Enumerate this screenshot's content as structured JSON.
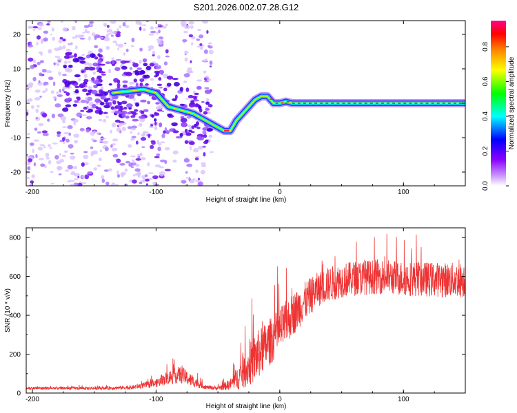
{
  "title": "S201.2026.002.07.28.G12",
  "chart_data": [
    {
      "type": "heatmap",
      "xlabel": "Height of straight line (km)",
      "ylabel": "Frequency (Hz)",
      "xlim": [
        -205,
        150
      ],
      "ylim": [
        -24,
        24
      ],
      "xticks": [
        -200,
        -100,
        0,
        100
      ],
      "yticks": [
        -20,
        -10,
        0,
        10,
        20
      ],
      "colorbar": {
        "label": "Normalized spectral amplitude",
        "range": [
          0,
          0.95
        ],
        "ticks": [
          0,
          0.2,
          0.4,
          0.6,
          0.8
        ],
        "colors": [
          "#ffffff",
          "#cc99ff",
          "#8800ff",
          "#0000ff",
          "#00ffff",
          "#00ff00",
          "#ffff00",
          "#ff8800",
          "#ff0000",
          "#ff0088"
        ]
      },
      "ridge": {
        "x": [
          -135,
          -110,
          -100,
          -90,
          -80,
          -70,
          -60,
          -55,
          -50,
          -45,
          -40,
          -35,
          -30,
          -25,
          -20,
          -15,
          -10,
          -5,
          0,
          5,
          10,
          20,
          50,
          100,
          150
        ],
        "y": [
          3,
          4,
          3,
          -1,
          -2,
          -3,
          -5,
          -6,
          -7,
          -8,
          -8,
          -5,
          -3,
          -1,
          1,
          2,
          2,
          0,
          0,
          0.5,
          0,
          0,
          0,
          0,
          0
        ]
      }
    },
    {
      "type": "line",
      "xlabel": "Height of straight line (km)",
      "ylabel": "SNR (10 * v/v)",
      "xlim": [
        -205,
        150
      ],
      "ylim": [
        0,
        850
      ],
      "xticks": [
        -200,
        -100,
        0,
        100
      ],
      "yticks": [
        0,
        200,
        400,
        600,
        800
      ],
      "series": [
        {
          "name": "SNR",
          "color": "#ee3333",
          "trend_x": [
            -205,
            -150,
            -120,
            -100,
            -90,
            -80,
            -70,
            -60,
            -50,
            -40,
            -30,
            -20,
            -10,
            0,
            10,
            20,
            30,
            40,
            50,
            60,
            80,
            100,
            120,
            150
          ],
          "trend_y": [
            25,
            25,
            28,
            50,
            80,
            95,
            60,
            30,
            25,
            45,
            100,
            180,
            250,
            320,
            400,
            470,
            530,
            560,
            580,
            590,
            600,
            590,
            585,
            580
          ],
          "spread_y": [
            8,
            8,
            10,
            20,
            35,
            45,
            30,
            10,
            10,
            30,
            80,
            130,
            120,
            120,
            110,
            100,
            90,
            90,
            90,
            90,
            90,
            90,
            90,
            90
          ]
        }
      ]
    }
  ]
}
